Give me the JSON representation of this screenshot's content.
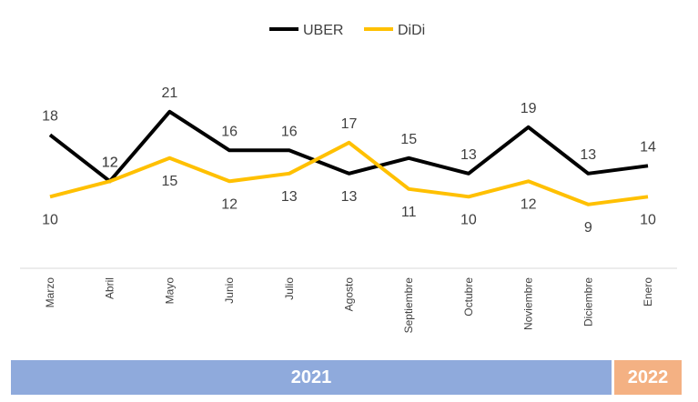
{
  "chart_data": {
    "type": "line",
    "categories": [
      "Marzo",
      "Abril",
      "Mayo",
      "Junio",
      "Julio",
      "Agosto",
      "Septiembre",
      "Octubre",
      "Noviembre",
      "Diciembre",
      "Enero"
    ],
    "series": [
      {
        "name": "UBER",
        "color": "#000000",
        "values": [
          18,
          12,
          21,
          16,
          16,
          13,
          15,
          13,
          19,
          13,
          14
        ]
      },
      {
        "name": "DiDi",
        "color": "#ffc000",
        "values": [
          10,
          12,
          15,
          12,
          13,
          17,
          11,
          10,
          12,
          9,
          10
        ]
      }
    ],
    "legend_position": "top-center",
    "grid": false
  },
  "period_groups": [
    {
      "label": "2021",
      "color": "#8faadc"
    },
    {
      "label": "2022",
      "color": "#f4b183"
    }
  ]
}
